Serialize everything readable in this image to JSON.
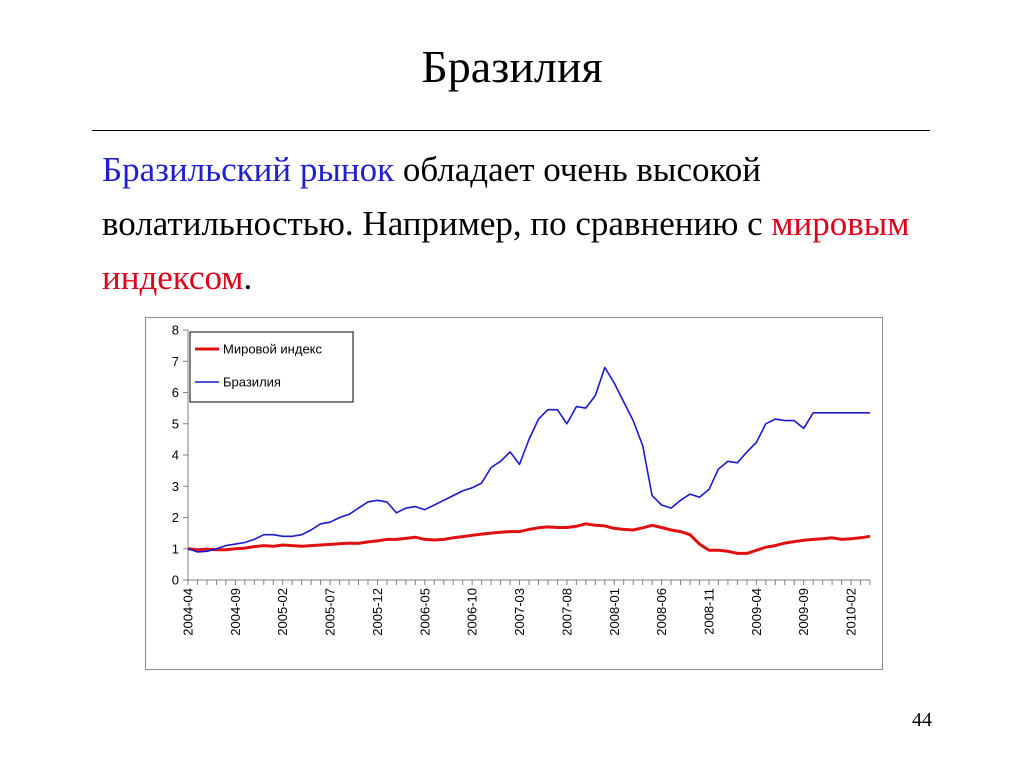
{
  "slide": {
    "title": "Бразилия",
    "text": {
      "part1": "Бразильский рынок",
      "part2": " обладает очень высокой волатильностью. Например, по сравнению с ",
      "part3": "мировым индексом",
      "part4": "."
    },
    "page_number": "44"
  },
  "colors": {
    "world": "#e01010",
    "brazil": "#1a1acc",
    "text_blue": "#1f1fd0",
    "text_red": "#e0001b"
  },
  "chart_data": {
    "type": "line",
    "ylim": [
      0,
      8
    ],
    "yticks": [
      "0",
      "1",
      "2",
      "3",
      "4",
      "5",
      "6",
      "7",
      "8"
    ],
    "x_tick_labels": [
      "2004-04",
      "2004-09",
      "2005-02",
      "2005-07",
      "2005-12",
      "2006-05",
      "2006-10",
      "2007-03",
      "2007-08",
      "2008-01",
      "2008-06",
      "2008-11",
      "2009-04",
      "2009-09",
      "2010-02"
    ],
    "x_tick_interval_months": 5,
    "grid": false,
    "legend_position": "top-left",
    "legend": [
      "Мировой индекс",
      "Бразилия"
    ],
    "series": [
      {
        "name": "Мировой индекс",
        "color": "#e01010",
        "x": [
          "2004-04",
          "2004-05",
          "2004-06",
          "2004-07",
          "2004-08",
          "2004-09",
          "2004-10",
          "2004-11",
          "2004-12",
          "2005-01",
          "2005-02",
          "2005-03",
          "2005-04",
          "2005-05",
          "2005-06",
          "2005-07",
          "2005-08",
          "2005-09",
          "2005-10",
          "2005-11",
          "2005-12",
          "2006-01",
          "2006-02",
          "2006-03",
          "2006-04",
          "2006-05",
          "2006-06",
          "2006-07",
          "2006-08",
          "2006-09",
          "2006-10",
          "2006-11",
          "2006-12",
          "2007-01",
          "2007-02",
          "2007-03",
          "2007-04",
          "2007-05",
          "2007-06",
          "2007-07",
          "2007-08",
          "2007-09",
          "2007-10",
          "2007-11",
          "2007-12",
          "2008-01",
          "2008-02",
          "2008-03",
          "2008-04",
          "2008-05",
          "2008-06",
          "2008-07",
          "2008-08",
          "2008-09",
          "2008-10",
          "2008-11",
          "2008-12",
          "2009-01",
          "2009-02",
          "2009-03",
          "2009-04",
          "2009-05",
          "2009-06",
          "2009-07",
          "2009-08",
          "2009-09",
          "2009-10",
          "2009-11",
          "2009-12",
          "2010-01",
          "2010-02",
          "2010-03",
          "2010-04"
        ],
        "values": [
          1.0,
          0.97,
          0.99,
          0.97,
          0.97,
          1.0,
          1.02,
          1.07,
          1.1,
          1.08,
          1.12,
          1.1,
          1.08,
          1.1,
          1.12,
          1.14,
          1.16,
          1.18,
          1.17,
          1.22,
          1.25,
          1.3,
          1.3,
          1.33,
          1.37,
          1.3,
          1.28,
          1.3,
          1.35,
          1.39,
          1.43,
          1.47,
          1.5,
          1.53,
          1.55,
          1.55,
          1.62,
          1.67,
          1.7,
          1.68,
          1.68,
          1.72,
          1.8,
          1.75,
          1.73,
          1.65,
          1.62,
          1.6,
          1.67,
          1.75,
          1.68,
          1.6,
          1.55,
          1.45,
          1.15,
          0.95,
          0.95,
          0.92,
          0.85,
          0.85,
          0.95,
          1.05,
          1.1,
          1.18,
          1.23,
          1.27,
          1.3,
          1.32,
          1.35,
          1.3,
          1.32,
          1.35,
          1.4
        ]
      },
      {
        "name": "Бразилия",
        "color": "#1a1acc",
        "x": [
          "2004-04",
          "2004-05",
          "2004-06",
          "2004-07",
          "2004-08",
          "2004-09",
          "2004-10",
          "2004-11",
          "2004-12",
          "2005-01",
          "2005-02",
          "2005-03",
          "2005-04",
          "2005-05",
          "2005-06",
          "2005-07",
          "2005-08",
          "2005-09",
          "2005-10",
          "2005-11",
          "2005-12",
          "2006-01",
          "2006-02",
          "2006-03",
          "2006-04",
          "2006-05",
          "2006-06",
          "2006-07",
          "2006-08",
          "2006-09",
          "2006-10",
          "2006-11",
          "2006-12",
          "2007-01",
          "2007-02",
          "2007-03",
          "2007-04",
          "2007-05",
          "2007-06",
          "2007-07",
          "2007-08",
          "2007-09",
          "2007-10",
          "2007-11",
          "2007-12",
          "2008-01",
          "2008-02",
          "2008-03",
          "2008-04",
          "2008-05",
          "2008-06",
          "2008-07",
          "2008-08",
          "2008-09",
          "2008-10",
          "2008-11",
          "2008-12",
          "2009-01",
          "2009-02",
          "2009-03",
          "2009-04",
          "2009-05",
          "2009-06",
          "2009-07",
          "2009-08",
          "2009-09",
          "2009-10",
          "2009-11",
          "2009-12",
          "2010-01",
          "2010-02",
          "2010-03",
          "2010-04"
        ],
        "values": [
          1.0,
          0.9,
          0.92,
          1.0,
          1.1,
          1.15,
          1.2,
          1.3,
          1.45,
          1.45,
          1.4,
          1.4,
          1.45,
          1.6,
          1.8,
          1.85,
          2.0,
          2.1,
          2.3,
          2.5,
          2.55,
          2.5,
          2.15,
          2.3,
          2.35,
          2.25,
          2.4,
          2.55,
          2.7,
          2.85,
          2.95,
          3.1,
          3.6,
          3.8,
          4.1,
          3.7,
          4.5,
          5.15,
          5.45,
          5.45,
          5.0,
          5.55,
          5.5,
          5.9,
          6.8,
          6.3,
          5.7,
          5.1,
          4.3,
          2.7,
          2.4,
          2.3,
          2.55,
          2.75,
          2.65,
          2.9,
          3.55,
          3.8,
          3.75,
          4.1,
          4.4,
          5.0,
          5.15,
          5.1,
          5.1,
          4.85,
          5.35,
          5.35,
          5.35,
          5.35,
          5.35,
          5.35,
          5.35
        ]
      }
    ]
  }
}
